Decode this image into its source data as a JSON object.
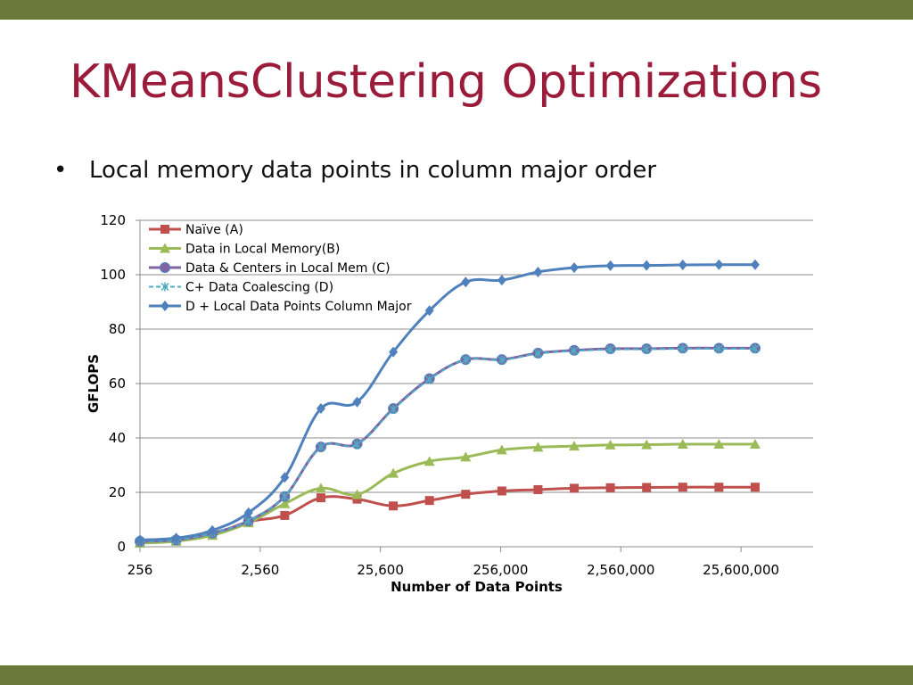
{
  "slide": {
    "title": "KMeansClustering Optimizations",
    "bullet_symbol": "•",
    "bullet_text": "Local memory data points in column major order"
  },
  "colors": {
    "band": "#6b7a3a",
    "title": "#9b1b3a",
    "series": [
      "#c0504d",
      "#9bbb59",
      "#8064a2",
      "#4bacc6",
      "#4f81bd"
    ]
  },
  "chart_data": {
    "type": "line",
    "title": "",
    "xlabel": "Number of Data Points",
    "ylabel": "GFLOPS",
    "ylim": [
      0,
      120
    ],
    "yticks": [
      0,
      20,
      40,
      60,
      80,
      100,
      120
    ],
    "x_scale": "log",
    "x_tick_labels": [
      "256",
      "2,560",
      "25,600",
      "256,000",
      "2,560,000",
      "25,600,000"
    ],
    "x_tick_values": [
      256,
      2560,
      25600,
      256000,
      2560000,
      25600000
    ],
    "x": [
      256,
      512,
      1024,
      2048,
      4096,
      8192,
      16384,
      32768,
      65536,
      131072,
      262144,
      524288,
      1048576,
      2097152,
      4194304,
      8388608,
      16777216,
      33554432
    ],
    "grid": "horizontal",
    "legend_position": "top-left",
    "series": [
      {
        "name": "Naïve (A)",
        "marker": "square",
        "values": [
          1.5,
          2.2,
          4.5,
          9.2,
          11.5,
          18.0,
          17.5,
          15.0,
          17.0,
          19.3,
          20.5,
          21.0,
          21.5,
          21.7,
          21.8,
          21.9,
          21.9,
          21.9
        ]
      },
      {
        "name": "Data in Local Memory(B)",
        "marker": "triangle",
        "values": [
          1.3,
          2.0,
          4.2,
          8.8,
          15.8,
          21.5,
          19.2,
          27.0,
          31.4,
          33.0,
          35.6,
          36.6,
          37.0,
          37.4,
          37.5,
          37.7,
          37.7,
          37.7
        ]
      },
      {
        "name": "Data & Centers in Local Mem (C)",
        "marker": "circle",
        "values": [
          2.0,
          2.5,
          5.0,
          9.5,
          18.5,
          36.7,
          37.8,
          50.8,
          61.8,
          68.8,
          68.8,
          71.2,
          72.2,
          72.8,
          72.8,
          73.0,
          73.0,
          73.0
        ]
      },
      {
        "name": "C+ Data Coalescing (D)",
        "marker": "x",
        "dashed": true,
        "values": [
          2.0,
          2.5,
          5.0,
          9.5,
          18.5,
          36.7,
          37.6,
          50.5,
          61.5,
          68.8,
          68.7,
          71.0,
          72.0,
          72.5,
          72.6,
          72.8,
          72.8,
          72.8
        ]
      },
      {
        "name": "D + Local Data Points Column Major",
        "marker": "diamond",
        "values": [
          2.5,
          3.2,
          6.0,
          12.5,
          25.5,
          50.8,
          53.2,
          71.6,
          86.8,
          97.3,
          98.0,
          101.0,
          102.6,
          103.3,
          103.4,
          103.6,
          103.7,
          103.7
        ]
      }
    ]
  }
}
